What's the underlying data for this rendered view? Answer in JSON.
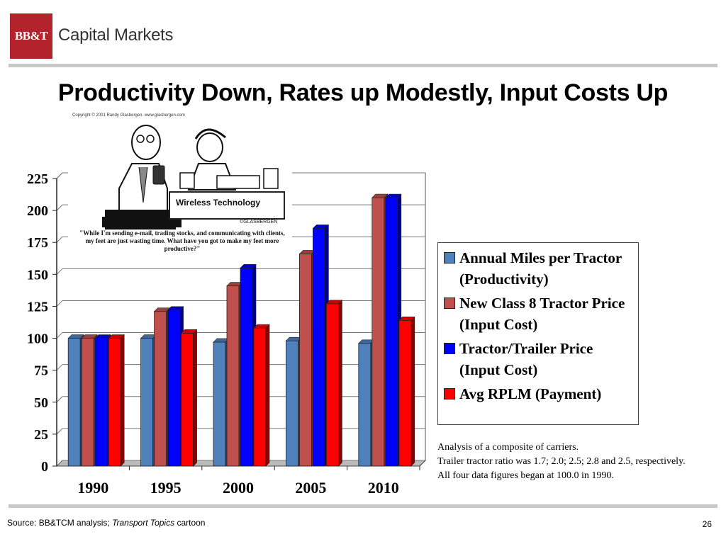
{
  "header": {
    "logo_mark": "BB&T",
    "logo_text": "Capital Markets"
  },
  "slide": {
    "title": "Productivity Down, Rates up Modestly, Input Costs Up"
  },
  "cartoon": {
    "credit": "Copyright © 2001 Randy Glasbergen.   www.glasbergen.com",
    "sign_text": "Wireless Technology",
    "signature": "©GLASBERGEN",
    "caption": "\"While I'm sending e-mail, trading stocks, and communicating with clients, my feet are just wasting time. What have you got to make my feet more productive?\""
  },
  "chart_data": {
    "type": "bar",
    "categories": [
      "1990",
      "1995",
      "2000",
      "2005",
      "2010"
    ],
    "series": [
      {
        "name": "Annual Miles per Tractor (Productivity)",
        "color": "#4f81bd",
        "values": [
          100,
          100,
          97,
          98,
          96
        ]
      },
      {
        "name": "New Class 8 Tractor Price (Input Cost)",
        "color": "#c0504d",
        "values": [
          100,
          121,
          141,
          166,
          210
        ]
      },
      {
        "name": "Tractor/Trailer Price (Input Cost)",
        "color": "#0000ff",
        "values": [
          100,
          122,
          155,
          186,
          210
        ]
      },
      {
        "name": "Avg RPLM (Payment)",
        "color": "#ff0000",
        "values": [
          100,
          104,
          108,
          127,
          114
        ]
      }
    ],
    "yticks": [
      "0",
      "25",
      "50",
      "75",
      "100",
      "125",
      "150",
      "175",
      "200",
      "225"
    ],
    "ylim": [
      0,
      225
    ],
    "grid": true,
    "legend_position": "right",
    "three_d": true
  },
  "notes": [
    "Analysis of a composite of carriers.",
    "Trailer tractor ratio was 1.7; 2.0; 2.5; 2.8 and 2.5, respectively.",
    "All four data figures began at 100.0 in 1990."
  ],
  "footer": {
    "source_prefix": "Source: BB&TCM analysis; ",
    "source_italic": "Transport Topics",
    "source_suffix": " cartoon",
    "page_number": "26"
  }
}
